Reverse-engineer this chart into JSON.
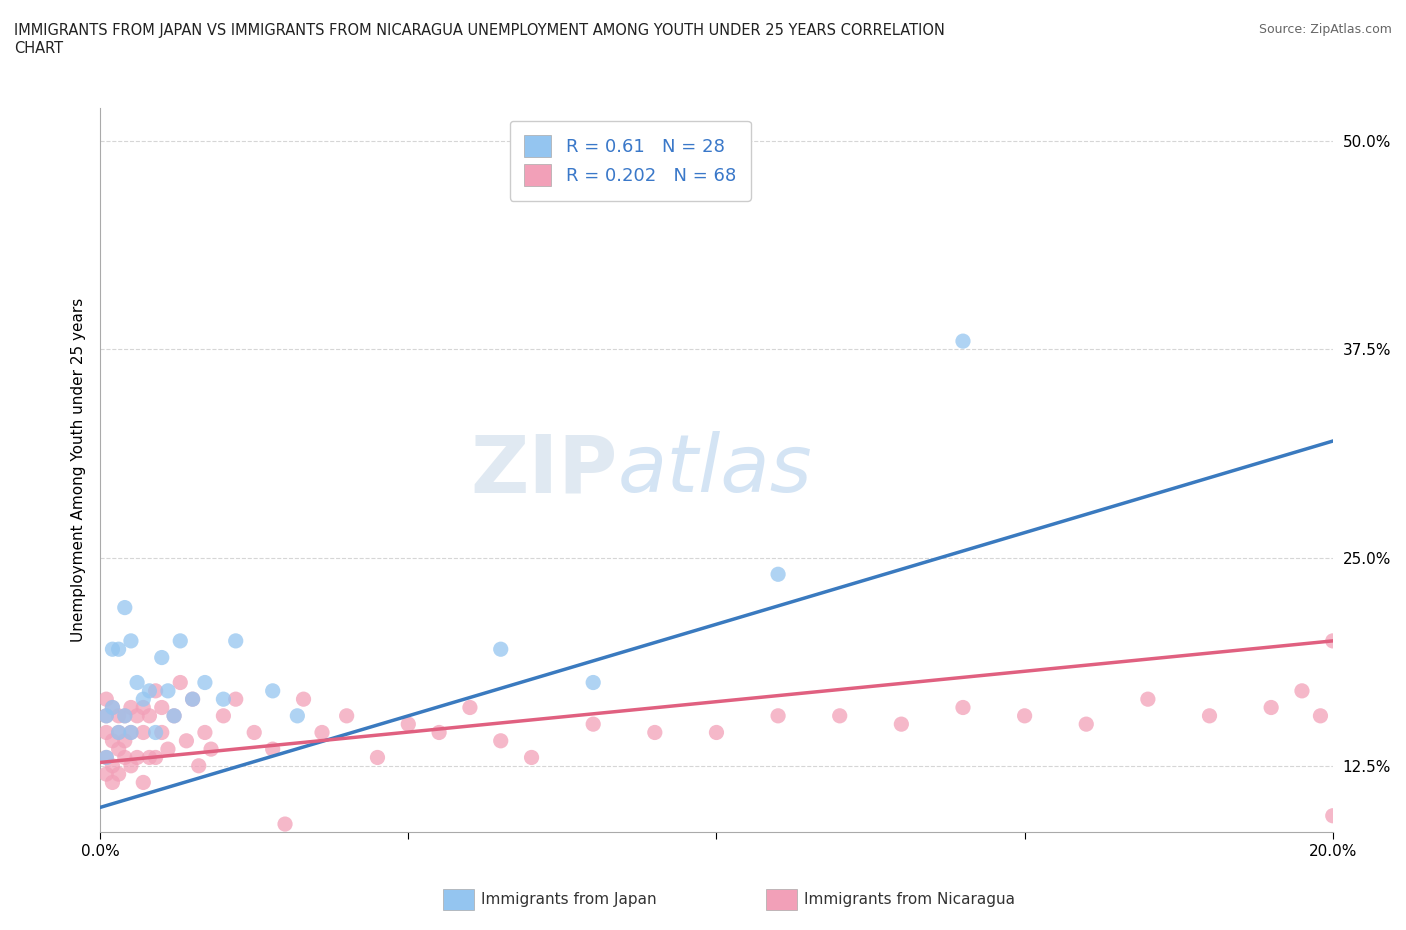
{
  "title": "IMMIGRANTS FROM JAPAN VS IMMIGRANTS FROM NICARAGUA UNEMPLOYMENT AMONG YOUTH UNDER 25 YEARS CORRELATION\nCHART",
  "source": "Source: ZipAtlas.com",
  "ylabel": "Unemployment Among Youth under 25 years",
  "xlim": [
    0.0,
    0.2
  ],
  "ylim": [
    0.085,
    0.52
  ],
  "xticks": [
    0.0,
    0.05,
    0.1,
    0.15,
    0.2
  ],
  "xticklabels": [
    "0.0%",
    "",
    "",
    "",
    "20.0%"
  ],
  "yticks": [
    0.125,
    0.25,
    0.375,
    0.5
  ],
  "yticklabels": [
    "12.5%",
    "25.0%",
    "37.5%",
    "50.0%"
  ],
  "japan_color": "#94C5F0",
  "nicaragua_color": "#F2A0B8",
  "japan_line_color": "#3A7ABF",
  "nicaragua_line_color": "#E06080",
  "japan_R": 0.61,
  "japan_N": 28,
  "nicaragua_R": 0.202,
  "nicaragua_N": 68,
  "legend_label_japan": "Immigrants from Japan",
  "legend_label_nicaragua": "Immigrants from Nicaragua",
  "watermark_zip": "ZIP",
  "watermark_atlas": "atlas",
  "background_color": "#FFFFFF",
  "grid_color": "#CCCCCC",
  "japan_line_x0": 0.0,
  "japan_line_y0": 0.1,
  "japan_line_x1": 0.2,
  "japan_line_y1": 0.32,
  "nica_line_x0": 0.0,
  "nica_line_y0": 0.127,
  "nica_line_x1": 0.2,
  "nica_line_y1": 0.2,
  "japan_x": [
    0.001,
    0.001,
    0.002,
    0.002,
    0.003,
    0.003,
    0.004,
    0.004,
    0.005,
    0.005,
    0.006,
    0.007,
    0.008,
    0.009,
    0.01,
    0.011,
    0.012,
    0.013,
    0.015,
    0.017,
    0.02,
    0.022,
    0.028,
    0.032,
    0.065,
    0.08,
    0.11,
    0.14
  ],
  "japan_y": [
    0.13,
    0.155,
    0.16,
    0.195,
    0.145,
    0.195,
    0.155,
    0.22,
    0.145,
    0.2,
    0.175,
    0.165,
    0.17,
    0.145,
    0.19,
    0.17,
    0.155,
    0.2,
    0.165,
    0.175,
    0.165,
    0.2,
    0.17,
    0.155,
    0.195,
    0.175,
    0.24,
    0.38
  ],
  "nicaragua_x": [
    0.001,
    0.001,
    0.001,
    0.001,
    0.001,
    0.002,
    0.002,
    0.002,
    0.002,
    0.003,
    0.003,
    0.003,
    0.003,
    0.004,
    0.004,
    0.004,
    0.005,
    0.005,
    0.005,
    0.006,
    0.006,
    0.007,
    0.007,
    0.007,
    0.008,
    0.008,
    0.009,
    0.009,
    0.01,
    0.01,
    0.011,
    0.012,
    0.013,
    0.014,
    0.015,
    0.016,
    0.017,
    0.018,
    0.02,
    0.022,
    0.025,
    0.028,
    0.03,
    0.033,
    0.036,
    0.04,
    0.045,
    0.05,
    0.055,
    0.06,
    0.065,
    0.07,
    0.08,
    0.09,
    0.1,
    0.11,
    0.12,
    0.13,
    0.14,
    0.15,
    0.16,
    0.17,
    0.18,
    0.19,
    0.195,
    0.198,
    0.2,
    0.2
  ],
  "nicaragua_y": [
    0.145,
    0.165,
    0.13,
    0.155,
    0.12,
    0.14,
    0.16,
    0.125,
    0.115,
    0.155,
    0.135,
    0.145,
    0.12,
    0.14,
    0.13,
    0.155,
    0.145,
    0.125,
    0.16,
    0.155,
    0.13,
    0.145,
    0.16,
    0.115,
    0.155,
    0.13,
    0.17,
    0.13,
    0.145,
    0.16,
    0.135,
    0.155,
    0.175,
    0.14,
    0.165,
    0.125,
    0.145,
    0.135,
    0.155,
    0.165,
    0.145,
    0.135,
    0.09,
    0.165,
    0.145,
    0.155,
    0.13,
    0.15,
    0.145,
    0.16,
    0.14,
    0.13,
    0.15,
    0.145,
    0.145,
    0.155,
    0.155,
    0.15,
    0.16,
    0.155,
    0.15,
    0.165,
    0.155,
    0.16,
    0.17,
    0.155,
    0.2,
    0.095
  ]
}
